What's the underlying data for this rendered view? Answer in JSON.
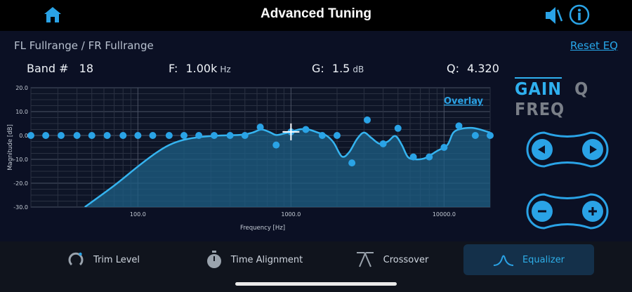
{
  "header": {
    "title": "Advanced Tuning"
  },
  "channel": {
    "label": "FL Fullrange / FR Fullrange"
  },
  "reset_label": "Reset EQ",
  "params": {
    "band_label": "Band #",
    "band_value": "18",
    "freq_label": "F:",
    "freq_value": "1.00k",
    "freq_unit": "Hz",
    "gain_label": "G:",
    "gain_value": "1.5",
    "gain_unit": "dB",
    "q_label": "Q:",
    "q_value": "4.320"
  },
  "overlay_label": "Overlay",
  "modes": {
    "gain": "GAIN",
    "q": "Q",
    "freq": "FREQ",
    "active": "gain"
  },
  "tabs": [
    {
      "label": "Trim Level",
      "icon": "trim-level-icon"
    },
    {
      "label": "Time Alignment",
      "icon": "stopwatch-icon"
    },
    {
      "label": "Crossover",
      "icon": "crossover-icon"
    },
    {
      "label": "Equalizer",
      "icon": "equalizer-icon",
      "active": true
    }
  ],
  "colors": {
    "accent": "#2fb0ef",
    "background": "#0b1024",
    "fill": "#1d5f86"
  },
  "chart_data": {
    "type": "line",
    "xlabel": "Frequency [Hz]",
    "ylabel": "Magnitude [dB]",
    "x_scale": "log",
    "xlim": [
      20,
      20000
    ],
    "ylim": [
      -30,
      20
    ],
    "x_ticks": [
      {
        "value": 100,
        "label": "100.0"
      },
      {
        "value": 1000,
        "label": "1000.0"
      },
      {
        "value": 10000,
        "label": "10000.0"
      }
    ],
    "y_ticks": [
      {
        "value": 20,
        "label": "20.0"
      },
      {
        "value": 10,
        "label": "10.0"
      },
      {
        "value": 0,
        "label": "0.0"
      },
      {
        "value": -10,
        "label": "-10.0"
      },
      {
        "value": -20,
        "label": "-20.0"
      },
      {
        "value": -30,
        "label": "-30.0"
      }
    ],
    "grid": true,
    "selected_band": {
      "freq": 1000,
      "gain": 1.5
    },
    "response_curve": [
      {
        "f": 45,
        "g": -30
      },
      {
        "f": 70,
        "g": -21
      },
      {
        "f": 100,
        "g": -13
      },
      {
        "f": 130,
        "g": -7.5
      },
      {
        "f": 160,
        "g": -4
      },
      {
        "f": 200,
        "g": -1.8
      },
      {
        "f": 260,
        "g": -0.6
      },
      {
        "f": 350,
        "g": 0
      },
      {
        "f": 480,
        "g": 0.3
      },
      {
        "f": 560,
        "g": 1.2
      },
      {
        "f": 640,
        "g": 2.5
      },
      {
        "f": 720,
        "g": 1.5
      },
      {
        "f": 800,
        "g": 0.2
      },
      {
        "f": 900,
        "g": 0.8
      },
      {
        "f": 1000,
        "g": 1.5
      },
      {
        "f": 1150,
        "g": 2.6
      },
      {
        "f": 1300,
        "g": 2.5
      },
      {
        "f": 1500,
        "g": 1.2
      },
      {
        "f": 1700,
        "g": 0
      },
      {
        "f": 1900,
        "g": -3
      },
      {
        "f": 2150,
        "g": -8.8
      },
      {
        "f": 2400,
        "g": -7
      },
      {
        "f": 2700,
        "g": -1.5
      },
      {
        "f": 3000,
        "g": 1.2
      },
      {
        "f": 3350,
        "g": -1
      },
      {
        "f": 3800,
        "g": -3.5
      },
      {
        "f": 4300,
        "g": -2.5
      },
      {
        "f": 4800,
        "g": -0.2
      },
      {
        "f": 5300,
        "g": -4
      },
      {
        "f": 5800,
        "g": -9
      },
      {
        "f": 6500,
        "g": -10
      },
      {
        "f": 7500,
        "g": -9.5
      },
      {
        "f": 9000,
        "g": -6.5
      },
      {
        "f": 10500,
        "g": -4
      },
      {
        "f": 11500,
        "g": 1.2
      },
      {
        "f": 13000,
        "g": 2.8
      },
      {
        "f": 15000,
        "g": 3.2
      },
      {
        "f": 17000,
        "g": 2.6
      },
      {
        "f": 20000,
        "g": 1.2
      }
    ],
    "band_points": [
      {
        "f": 20,
        "g": 0
      },
      {
        "f": 25,
        "g": 0
      },
      {
        "f": 31.5,
        "g": 0
      },
      {
        "f": 40,
        "g": 0
      },
      {
        "f": 50,
        "g": 0
      },
      {
        "f": 63,
        "g": 0
      },
      {
        "f": 80,
        "g": 0
      },
      {
        "f": 100,
        "g": 0
      },
      {
        "f": 125,
        "g": 0
      },
      {
        "f": 160,
        "g": 0
      },
      {
        "f": 200,
        "g": 0
      },
      {
        "f": 250,
        "g": 0
      },
      {
        "f": 315,
        "g": 0
      },
      {
        "f": 400,
        "g": 0
      },
      {
        "f": 500,
        "g": 0
      },
      {
        "f": 630,
        "g": 3.5
      },
      {
        "f": 800,
        "g": -4
      },
      {
        "f": 1000,
        "g": 1.5
      },
      {
        "f": 1250,
        "g": 2.5
      },
      {
        "f": 1600,
        "g": 0
      },
      {
        "f": 2000,
        "g": 0
      },
      {
        "f": 2500,
        "g": -11.5
      },
      {
        "f": 3150,
        "g": 6.5
      },
      {
        "f": 4000,
        "g": -3.5
      },
      {
        "f": 5000,
        "g": 3
      },
      {
        "f": 6300,
        "g": -9
      },
      {
        "f": 8000,
        "g": -9
      },
      {
        "f": 10000,
        "g": -5
      },
      {
        "f": 12500,
        "g": 4
      },
      {
        "f": 16000,
        "g": 0
      },
      {
        "f": 20000,
        "g": 0
      }
    ]
  }
}
